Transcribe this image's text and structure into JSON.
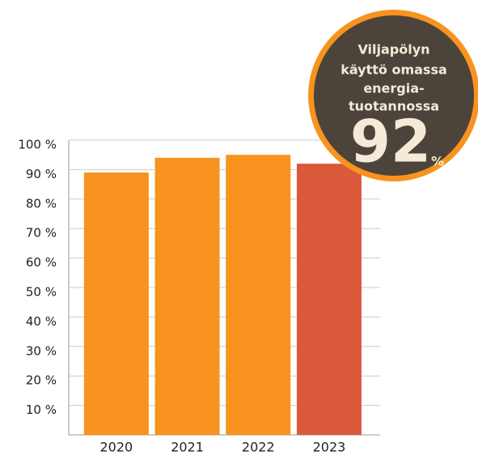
{
  "chart_data": {
    "type": "bar",
    "categories": [
      "2020",
      "2021",
      "2022",
      "2023"
    ],
    "values": [
      89,
      94,
      95,
      92
    ],
    "colors": [
      "#f7931e",
      "#f7931e",
      "#f7931e",
      "#d9593a"
    ],
    "ylim": [
      0,
      100
    ],
    "yticks": [
      {
        "value": 10,
        "label": "10 %"
      },
      {
        "value": 20,
        "label": "20 %"
      },
      {
        "value": 30,
        "label": "30 %"
      },
      {
        "value": 40,
        "label": "40 %"
      },
      {
        "value": 50,
        "label": "50 %"
      },
      {
        "value": 60,
        "label": "60 %"
      },
      {
        "value": 70,
        "label": "70 %"
      },
      {
        "value": 80,
        "label": "80 %"
      },
      {
        "value": 90,
        "label": "90 %"
      },
      {
        "value": 100,
        "label": "100 %"
      }
    ],
    "grid": true,
    "callout": {
      "lines": [
        "Viljapölyn",
        "käyttö omassa",
        "energia-",
        "tuotannossa"
      ],
      "value": 92,
      "unit": "%"
    }
  }
}
